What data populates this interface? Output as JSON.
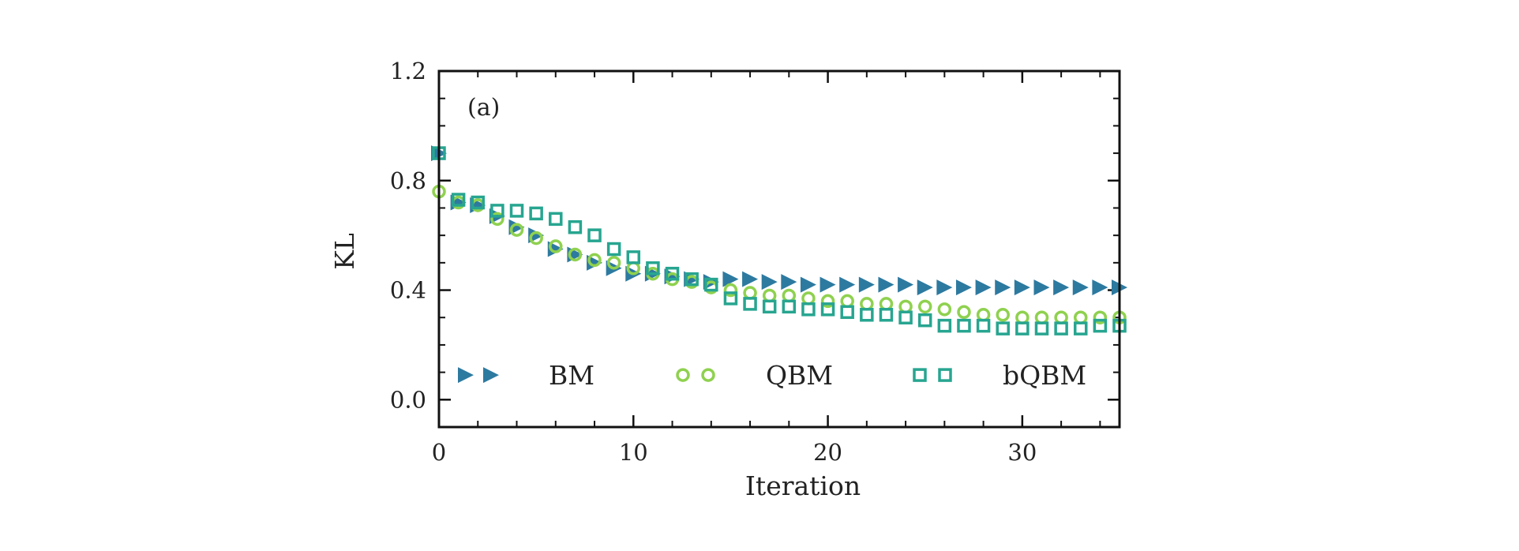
{
  "chart_data": {
    "type": "scatter",
    "panel_label": "(a)",
    "xlabel": "Iteration",
    "ylabel": "KL",
    "xlim": [
      0,
      35
    ],
    "ylim": [
      -0.1,
      1.2
    ],
    "xticks": [
      0,
      10,
      20,
      30
    ],
    "yticks": [
      0.0,
      0.4,
      0.8,
      1.2
    ],
    "ytick_labels": [
      "0.0",
      "0.4",
      "0.8",
      "1.2"
    ],
    "xtick_labels": [
      "0",
      "10",
      "20",
      "30"
    ],
    "legend_position": "bottom",
    "x": [
      0,
      1,
      2,
      3,
      4,
      5,
      6,
      7,
      8,
      9,
      10,
      11,
      12,
      13,
      14,
      15,
      16,
      17,
      18,
      19,
      20,
      21,
      22,
      23,
      24,
      25,
      26,
      27,
      28,
      29,
      30,
      31,
      32,
      33,
      34,
      35
    ],
    "series": [
      {
        "name": "BM",
        "marker": "triangle-right",
        "color": "#2d7aa0",
        "values": [
          0.9,
          0.72,
          0.71,
          0.67,
          0.63,
          0.6,
          0.55,
          0.53,
          0.5,
          0.48,
          0.46,
          0.46,
          0.45,
          0.44,
          0.43,
          0.44,
          0.44,
          0.43,
          0.43,
          0.42,
          0.42,
          0.42,
          0.42,
          0.42,
          0.42,
          0.41,
          0.41,
          0.41,
          0.41,
          0.41,
          0.41,
          0.41,
          0.41,
          0.41,
          0.41,
          0.41
        ]
      },
      {
        "name": "QBM",
        "marker": "circle-open",
        "color": "#8fd14f",
        "values": [
          0.76,
          0.72,
          0.71,
          0.66,
          0.62,
          0.59,
          0.56,
          0.53,
          0.51,
          0.5,
          0.48,
          0.46,
          0.44,
          0.43,
          0.41,
          0.4,
          0.39,
          0.38,
          0.38,
          0.37,
          0.36,
          0.36,
          0.35,
          0.35,
          0.34,
          0.34,
          0.33,
          0.32,
          0.31,
          0.31,
          0.3,
          0.3,
          0.3,
          0.3,
          0.3,
          0.3
        ]
      },
      {
        "name": "bQBM",
        "marker": "square-open",
        "color": "#27a590",
        "values": [
          0.9,
          0.73,
          0.72,
          0.69,
          0.69,
          0.68,
          0.66,
          0.63,
          0.6,
          0.55,
          0.52,
          0.48,
          0.46,
          0.44,
          0.42,
          0.37,
          0.35,
          0.34,
          0.34,
          0.33,
          0.33,
          0.32,
          0.31,
          0.31,
          0.3,
          0.29,
          0.27,
          0.27,
          0.27,
          0.26,
          0.26,
          0.26,
          0.26,
          0.26,
          0.27,
          0.27
        ]
      }
    ]
  }
}
